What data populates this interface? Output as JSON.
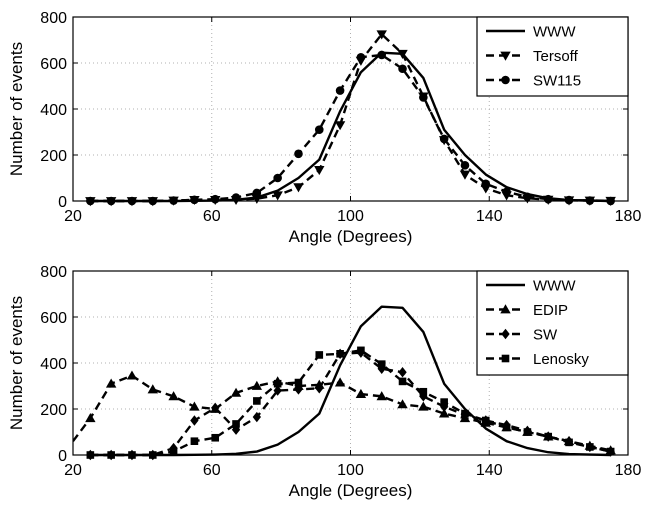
{
  "chart_data": [
    {
      "type": "line",
      "title": "",
      "xlabel": "Angle (Degrees)",
      "ylabel": "Number of events",
      "xlim": [
        20,
        180
      ],
      "ylim": [
        0,
        800
      ],
      "xticks": [
        20,
        60,
        100,
        140,
        180
      ],
      "yticks": [
        0,
        200,
        400,
        600,
        800
      ],
      "grid": "dotted",
      "legend_position": "top-right",
      "series": [
        {
          "name": "WWW",
          "style": "solid",
          "marker": "none",
          "x": [
            25,
            31,
            37,
            43,
            49,
            55,
            61,
            67,
            73,
            79,
            85,
            91,
            97,
            103,
            109,
            115,
            121,
            127,
            133,
            139,
            145,
            151,
            157,
            163,
            169,
            175
          ],
          "y": [
            0,
            0,
            0,
            0,
            0,
            1,
            2,
            5,
            15,
            45,
            100,
            180,
            390,
            560,
            645,
            640,
            535,
            310,
            200,
            115,
            60,
            30,
            12,
            4,
            2,
            0
          ]
        },
        {
          "name": "Tersoff",
          "style": "dashed",
          "marker": "triangle-down",
          "x": [
            25,
            31,
            37,
            43,
            49,
            55,
            61,
            67,
            73,
            79,
            85,
            91,
            97,
            103,
            109,
            115,
            121,
            127,
            133,
            139,
            145,
            151,
            157,
            163,
            169,
            175
          ],
          "y": [
            0,
            0,
            0,
            0,
            2,
            5,
            5,
            5,
            10,
            25,
            60,
            135,
            330,
            610,
            725,
            640,
            455,
            265,
            115,
            55,
            25,
            12,
            6,
            3,
            2,
            1
          ]
        },
        {
          "name": "SW115",
          "style": "dashed",
          "marker": "circle",
          "x": [
            25,
            31,
            37,
            43,
            49,
            55,
            61,
            67,
            73,
            79,
            85,
            91,
            97,
            103,
            109,
            115,
            121,
            127,
            133,
            139,
            145,
            151,
            157,
            163,
            169,
            175
          ],
          "y": [
            0,
            0,
            0,
            0,
            2,
            5,
            8,
            15,
            35,
            100,
            205,
            310,
            480,
            625,
            635,
            575,
            450,
            270,
            155,
            75,
            40,
            18,
            8,
            4,
            2,
            0
          ]
        }
      ]
    },
    {
      "type": "line",
      "title": "",
      "xlabel": "Angle (Degrees)",
      "ylabel": "Number of events",
      "xlim": [
        20,
        180
      ],
      "ylim": [
        0,
        800
      ],
      "xticks": [
        20,
        60,
        100,
        140,
        180
      ],
      "yticks": [
        0,
        200,
        400,
        600,
        800
      ],
      "grid": "dotted",
      "legend_position": "top-right",
      "series": [
        {
          "name": "WWW",
          "style": "solid",
          "marker": "none",
          "x": [
            25,
            31,
            37,
            43,
            49,
            55,
            61,
            67,
            73,
            79,
            85,
            91,
            97,
            103,
            109,
            115,
            121,
            127,
            133,
            139,
            145,
            151,
            157,
            163,
            169,
            175
          ],
          "y": [
            0,
            0,
            0,
            0,
            0,
            1,
            2,
            5,
            15,
            45,
            100,
            180,
            390,
            560,
            645,
            640,
            535,
            310,
            200,
            115,
            60,
            30,
            12,
            4,
            2,
            0
          ]
        },
        {
          "name": "EDIP",
          "style": "dashed",
          "marker": "triangle-up",
          "x": [
            20,
            25,
            31,
            37,
            43,
            49,
            55,
            61,
            67,
            73,
            79,
            85,
            91,
            97,
            103,
            109,
            115,
            121,
            127,
            133,
            139,
            145,
            151,
            157,
            163,
            169,
            175
          ],
          "y": [
            60,
            160,
            310,
            345,
            285,
            255,
            210,
            200,
            270,
            300,
            320,
            300,
            305,
            315,
            265,
            255,
            220,
            210,
            180,
            160,
            140,
            120,
            100,
            80,
            60,
            40,
            20
          ]
        },
        {
          "name": "SW",
          "style": "dashed",
          "marker": "diamond",
          "x": [
            25,
            31,
            37,
            43,
            49,
            55,
            61,
            67,
            73,
            79,
            85,
            91,
            97,
            103,
            109,
            115,
            121,
            127,
            133,
            139,
            145,
            151,
            157,
            163,
            169,
            175
          ],
          "y": [
            0,
            0,
            0,
            0,
            30,
            150,
            205,
            110,
            165,
            280,
            285,
            290,
            440,
            445,
            375,
            360,
            255,
            210,
            175,
            150,
            130,
            105,
            80,
            60,
            35,
            15
          ]
        },
        {
          "name": "Lenosky",
          "style": "dashed",
          "marker": "square",
          "x": [
            25,
            31,
            37,
            43,
            49,
            55,
            61,
            67,
            73,
            79,
            85,
            91,
            97,
            103,
            109,
            115,
            121,
            127,
            133,
            139,
            145,
            151,
            157,
            163,
            169,
            175
          ],
          "y": [
            0,
            0,
            0,
            0,
            15,
            60,
            75,
            135,
            235,
            310,
            315,
            435,
            440,
            455,
            395,
            320,
            275,
            230,
            180,
            150,
            120,
            100,
            80,
            55,
            35,
            15
          ]
        }
      ]
    }
  ]
}
